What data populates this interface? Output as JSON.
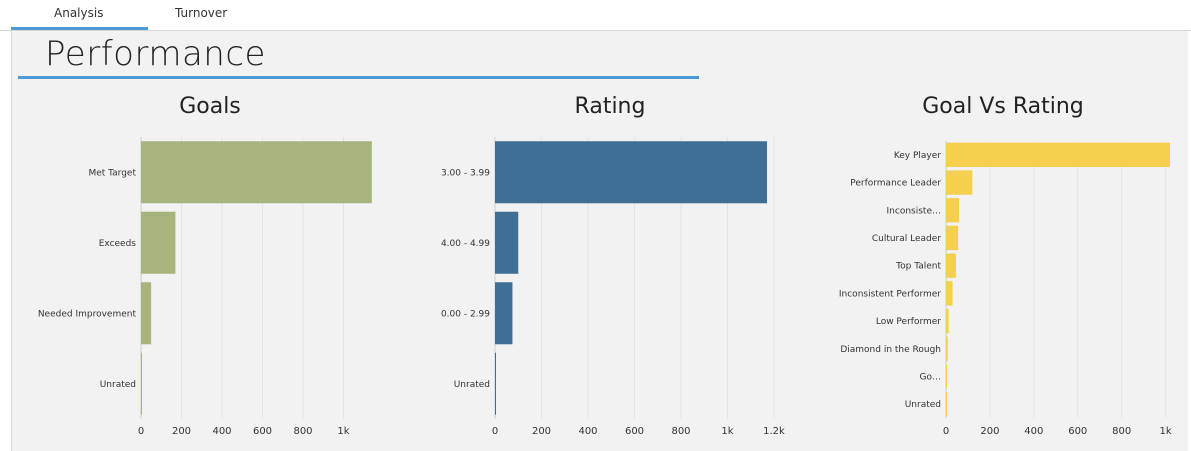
{
  "tabs": [
    {
      "label": "Analysis",
      "active": true
    },
    {
      "label": "Turnover",
      "active": false
    }
  ],
  "page_title": "Performance",
  "colors": {
    "accent": "#4a9ad4",
    "goals_bar": "#a8b47d",
    "rating_bar": "#3f6f94",
    "goal_vs_rating_bar": "#f5d04e"
  },
  "chart_data": [
    {
      "id": "goals",
      "type": "bar",
      "orientation": "horizontal",
      "title": "Goals",
      "categories": [
        "Met Target",
        "Exceeds",
        "Needed Improvement",
        "Unrated"
      ],
      "values": [
        1140,
        170,
        50,
        2
      ],
      "xlim": [
        0,
        1200
      ],
      "xticks": [
        0,
        200,
        400,
        600,
        800,
        1000
      ],
      "xtick_labels": [
        "0",
        "200",
        "400",
        "600",
        "800",
        "1k"
      ],
      "xlabel": "",
      "ylabel": "",
      "grid": true
    },
    {
      "id": "rating",
      "type": "bar",
      "orientation": "horizontal",
      "title": "Rating",
      "categories": [
        "3.00 - 3.99",
        "4.00 - 4.99",
        "0.00 - 2.99",
        "Unrated"
      ],
      "values": [
        1170,
        100,
        75,
        2
      ],
      "xlim": [
        0,
        1200
      ],
      "xticks": [
        0,
        200,
        400,
        600,
        800,
        1000,
        1200
      ],
      "xtick_labels": [
        "0",
        "200",
        "400",
        "600",
        "800",
        "1k",
        "1.2k"
      ],
      "xlabel": "",
      "ylabel": "",
      "grid": true
    },
    {
      "id": "goal_vs_rating",
      "type": "bar",
      "orientation": "horizontal",
      "title": "Goal Vs Rating",
      "categories": [
        "Key Player",
        "Performance Leader",
        "Inconsiste…",
        "Cultural Leader",
        "Top Talent",
        "Inconsistent Performer",
        "Low Performer",
        "Diamond in the Rough",
        "Go…",
        "Unrated"
      ],
      "values": [
        1020,
        120,
        60,
        55,
        45,
        30,
        12,
        8,
        4,
        2
      ],
      "xlim": [
        0,
        1020
      ],
      "xticks": [
        0,
        200,
        400,
        600,
        800,
        1000
      ],
      "xtick_labels": [
        "0",
        "200",
        "400",
        "600",
        "800",
        "1k"
      ],
      "xlabel": "",
      "ylabel": "",
      "grid": true
    }
  ]
}
